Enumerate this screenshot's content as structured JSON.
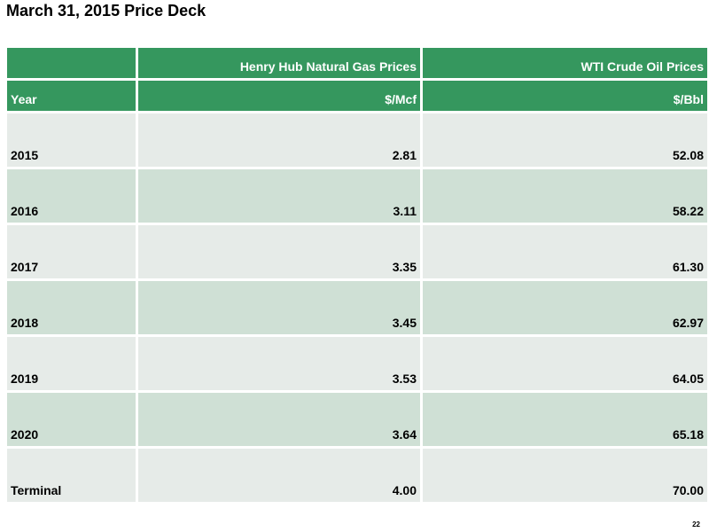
{
  "title": "March 31, 2015 Price Deck",
  "table": {
    "header_row_1": [
      "",
      "Henry Hub Natural Gas Prices",
      "WTI Crude Oil Prices"
    ],
    "header_row_2": [
      "Year",
      "$/Mcf",
      "$/Bbl"
    ],
    "rows": [
      {
        "year": "2015",
        "gas": "2.81",
        "oil": "52.08"
      },
      {
        "year": "2016",
        "gas": "3.11",
        "oil": "58.22"
      },
      {
        "year": "2017",
        "gas": "3.35",
        "oil": "61.30"
      },
      {
        "year": "2018",
        "gas": "3.45",
        "oil": "62.97"
      },
      {
        "year": "2019",
        "gas": "3.53",
        "oil": "64.05"
      },
      {
        "year": "2020",
        "gas": "3.64",
        "oil": "65.18"
      },
      {
        "year": "Terminal",
        "gas": "4.00",
        "oil": "70.00"
      }
    ]
  },
  "colors": {
    "header_green": "#35975e",
    "row_light": "#e6ebe8",
    "row_dark": "#cfe0d5"
  },
  "page_number": "22"
}
